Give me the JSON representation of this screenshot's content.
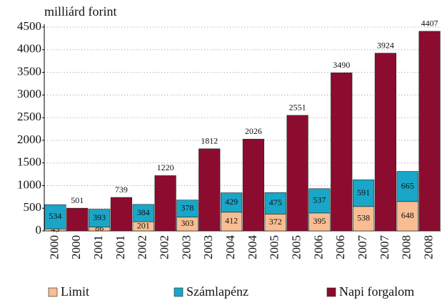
{
  "chart_data": {
    "type": "bar",
    "stacked": true,
    "y_label": "milliárd forint",
    "categories": [
      "2000",
      "2000",
      "2001",
      "2001",
      "2002",
      "2002",
      "2003",
      "2003",
      "2004",
      "2004",
      "2005",
      "2005",
      "2006",
      "2006",
      "2007",
      "2007",
      "2008",
      "2008"
    ],
    "series": [
      {
        "name": "Limit",
        "color": "#f8bd92",
        "values": [
          45,
          null,
          86,
          null,
          201,
          null,
          303,
          null,
          412,
          null,
          372,
          null,
          395,
          null,
          538,
          null,
          648,
          null
        ]
      },
      {
        "name": "Számlapénz",
        "color": "#1aa6c8",
        "values": [
          534,
          null,
          393,
          null,
          384,
          null,
          378,
          null,
          429,
          null,
          475,
          null,
          537,
          null,
          591,
          null,
          665,
          null
        ]
      },
      {
        "name": "Napi forgalom",
        "color": "#8c0c30",
        "values": [
          null,
          501,
          null,
          739,
          null,
          1220,
          null,
          1812,
          null,
          2026,
          null,
          2551,
          null,
          3490,
          null,
          3924,
          null,
          4407
        ]
      }
    ],
    "ylim": [
      0,
      4500
    ],
    "yticks": [
      0,
      500,
      1000,
      1500,
      2000,
      2500,
      3000,
      3500,
      4000,
      4500
    ],
    "grid": true,
    "legend": "bottom"
  }
}
